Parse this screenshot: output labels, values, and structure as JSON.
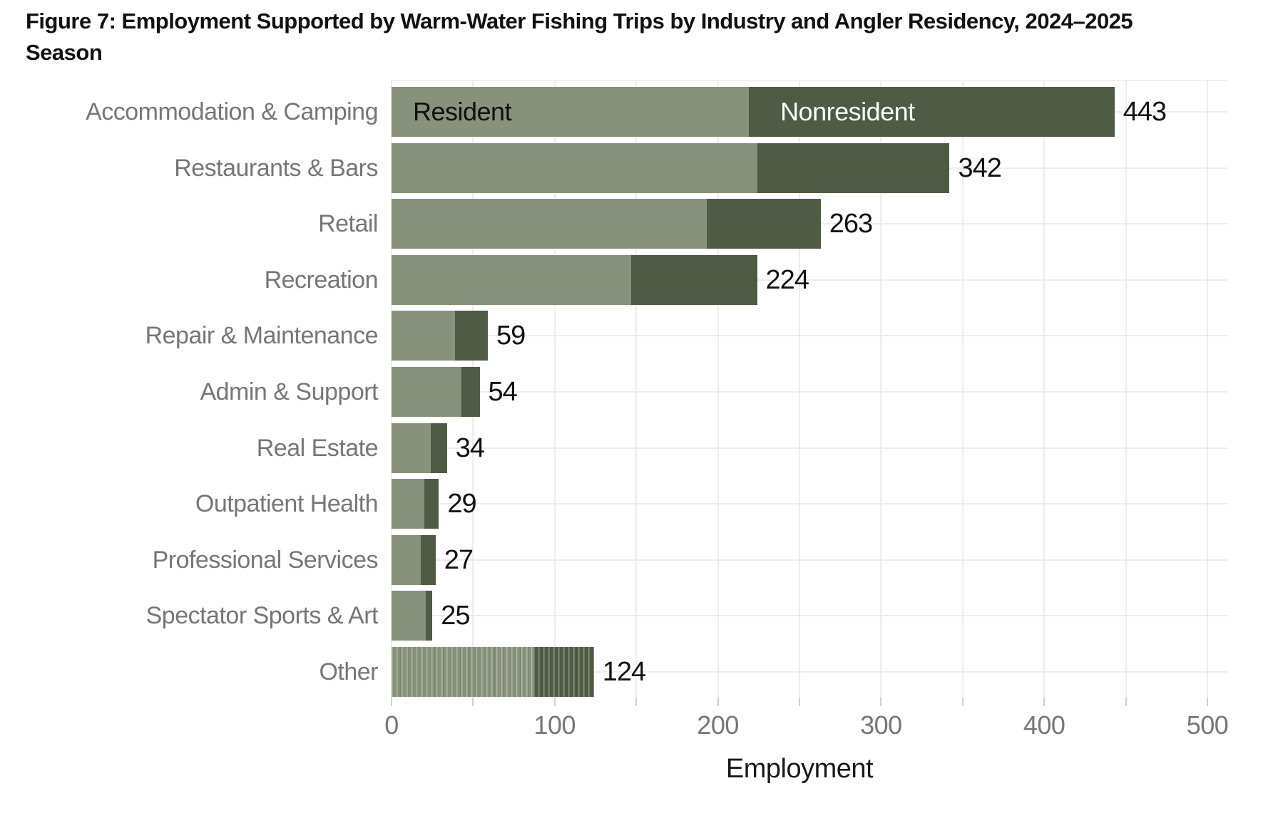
{
  "title": "Figure 7: Employment Supported by Warm-Water Fishing Trips by Industry and Angler Residency, 2024–2025 Season",
  "title_lines": [
    "Figure 7: Employment Supported by Warm-Water Fishing Trips by Industry and Angler Residency, 2024–2025",
    "Season"
  ],
  "chart_data": {
    "type": "bar",
    "orientation": "horizontal",
    "stacked": true,
    "title": "Figure 7: Employment Supported by Warm-Water Fishing Trips by Industry and Angler Residency, 2024–2025 Season",
    "xlabel": "Employment",
    "xlim": [
      0,
      500
    ],
    "x_major_ticks": [
      0,
      100,
      200,
      300,
      400,
      500
    ],
    "x_minor_tick_step": 50,
    "grid": true,
    "legend_style": "series names drawn inside first bar",
    "categories": [
      "Accommodation & Camping",
      "Restaurants & Bars",
      "Retail",
      "Recreation",
      "Repair & Maintenance",
      "Admin & Support",
      "Real Estate",
      "Outpatient Health",
      "Professional Services",
      "Spectator Sports & Art",
      "Other"
    ],
    "totals": [
      443,
      342,
      263,
      224,
      59,
      54,
      34,
      29,
      27,
      25,
      124
    ],
    "series": [
      {
        "name": "Resident",
        "color": "#87917B",
        "values": [
          219,
          224,
          193,
          147,
          39,
          43,
          24,
          20,
          18,
          21,
          87
        ]
      },
      {
        "name": "Nonresident",
        "color": "#4F5B44",
        "values": [
          224,
          118,
          70,
          77,
          20,
          11,
          10,
          9,
          9,
          4,
          37
        ]
      }
    ],
    "striped_categories": [
      "Other"
    ]
  },
  "colors": {
    "resident": "#87917B",
    "nonresident": "#4F5B44",
    "background": "#FFFFFF",
    "gridline": "#EDEDED",
    "tick": "#CFCFCF",
    "axis_text": "#767676",
    "value_text": "#111111",
    "title_text": "#111111",
    "inbar_resident_text": "#111111",
    "inbar_nonresident_text": "#FFFFFF"
  }
}
